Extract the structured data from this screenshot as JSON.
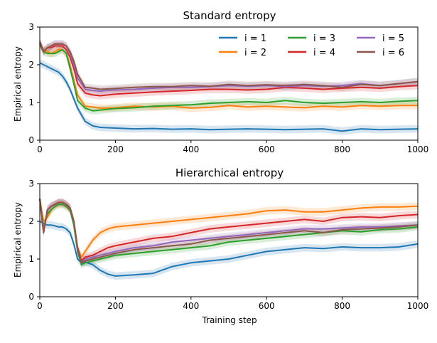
{
  "chart_data": [
    {
      "type": "line",
      "title": "Standard entropy",
      "xlabel": "",
      "ylabel": "Empirical entropy",
      "xlim": [
        0,
        1000
      ],
      "ylim": [
        0,
        3
      ],
      "xticks": [
        0,
        200,
        400,
        600,
        800,
        1000
      ],
      "yticks": [
        0,
        1,
        2,
        3
      ],
      "x": [
        0,
        10,
        20,
        30,
        40,
        50,
        60,
        70,
        80,
        90,
        100,
        120,
        140,
        160,
        180,
        200,
        250,
        300,
        350,
        400,
        450,
        500,
        550,
        600,
        650,
        700,
        750,
        800,
        850,
        900,
        950,
        1000
      ],
      "legend_position": "top-right",
      "series": [
        {
          "name": "i = 1",
          "color": "#1f77b4",
          "values": [
            2.05,
            2.0,
            1.95,
            1.9,
            1.85,
            1.8,
            1.7,
            1.55,
            1.35,
            1.1,
            0.85,
            0.5,
            0.38,
            0.34,
            0.33,
            0.32,
            0.3,
            0.31,
            0.29,
            0.3,
            0.28,
            0.29,
            0.3,
            0.29,
            0.28,
            0.29,
            0.3,
            0.24,
            0.3,
            0.28,
            0.29,
            0.3
          ]
        },
        {
          "name": "i = 2",
          "color": "#ff7f0e",
          "values": [
            2.55,
            2.4,
            2.35,
            2.3,
            2.35,
            2.4,
            2.4,
            2.3,
            2.0,
            1.6,
            1.2,
            0.9,
            0.88,
            0.85,
            0.85,
            0.86,
            0.9,
            0.88,
            0.9,
            0.85,
            0.87,
            0.92,
            0.88,
            0.9,
            0.88,
            0.86,
            0.9,
            0.88,
            0.92,
            0.9,
            0.92,
            0.92
          ]
        },
        {
          "name": "i = 3",
          "color": "#2ca02c",
          "values": [
            2.55,
            2.35,
            2.3,
            2.3,
            2.3,
            2.35,
            2.4,
            2.3,
            1.9,
            1.5,
            1.05,
            0.85,
            0.78,
            0.8,
            0.82,
            0.84,
            0.86,
            0.9,
            0.92,
            0.94,
            0.98,
            1.0,
            1.02,
            1.0,
            1.05,
            1.0,
            0.98,
            1.0,
            1.02,
            1.0,
            1.03,
            1.05
          ]
        },
        {
          "name": "i = 4",
          "color": "#d62728",
          "values": [
            2.6,
            2.35,
            2.45,
            2.45,
            2.5,
            2.5,
            2.5,
            2.4,
            2.2,
            1.9,
            1.5,
            1.25,
            1.2,
            1.18,
            1.2,
            1.22,
            1.25,
            1.28,
            1.3,
            1.32,
            1.35,
            1.35,
            1.33,
            1.35,
            1.4,
            1.38,
            1.35,
            1.38,
            1.4,
            1.38,
            1.42,
            1.45
          ]
        },
        {
          "name": "i = 5",
          "color": "#9467bd",
          "values": [
            2.6,
            2.35,
            2.45,
            2.5,
            2.55,
            2.55,
            2.55,
            2.5,
            2.3,
            2.0,
            1.65,
            1.35,
            1.32,
            1.3,
            1.32,
            1.33,
            1.35,
            1.38,
            1.4,
            1.4,
            1.42,
            1.45,
            1.43,
            1.45,
            1.42,
            1.45,
            1.43,
            1.45,
            1.5,
            1.45,
            1.5,
            1.55
          ]
        },
        {
          "name": "i = 6",
          "color": "#8c564b",
          "values": [
            2.6,
            2.35,
            2.45,
            2.5,
            2.55,
            2.55,
            2.55,
            2.5,
            2.35,
            2.1,
            1.75,
            1.4,
            1.38,
            1.35,
            1.36,
            1.37,
            1.4,
            1.42,
            1.42,
            1.45,
            1.43,
            1.48,
            1.45,
            1.47,
            1.45,
            1.48,
            1.45,
            1.4,
            1.48,
            1.45,
            1.5,
            1.55
          ]
        }
      ]
    },
    {
      "type": "line",
      "title": "Hierarchical entropy",
      "xlabel": "Training step",
      "ylabel": "Empirical entropy",
      "xlim": [
        0,
        1000
      ],
      "ylim": [
        0,
        3
      ],
      "xticks": [
        0,
        200,
        400,
        600,
        800,
        1000
      ],
      "yticks": [
        0,
        1,
        2,
        3
      ],
      "x": [
        0,
        10,
        20,
        30,
        40,
        50,
        60,
        70,
        80,
        90,
        100,
        110,
        120,
        140,
        160,
        180,
        200,
        250,
        300,
        350,
        400,
        450,
        500,
        550,
        600,
        650,
        700,
        750,
        800,
        850,
        900,
        950,
        1000
      ],
      "series": [
        {
          "name": "i = 1",
          "color": "#1f77b4",
          "values": [
            2.0,
            1.95,
            1.9,
            1.9,
            1.88,
            1.85,
            1.85,
            1.8,
            1.7,
            1.4,
            1.0,
            0.9,
            0.92,
            0.85,
            0.7,
            0.6,
            0.55,
            0.58,
            0.62,
            0.8,
            0.9,
            0.95,
            1.0,
            1.1,
            1.2,
            1.25,
            1.3,
            1.28,
            1.32,
            1.3,
            1.3,
            1.32,
            1.4
          ]
        },
        {
          "name": "i = 2",
          "color": "#ff7f0e",
          "values": [
            2.6,
            2.0,
            2.1,
            2.3,
            2.4,
            2.45,
            2.45,
            2.4,
            2.3,
            2.0,
            1.3,
            1.05,
            1.2,
            1.5,
            1.7,
            1.8,
            1.85,
            1.9,
            1.95,
            2.0,
            2.05,
            2.1,
            2.15,
            2.2,
            2.28,
            2.3,
            2.25,
            2.25,
            2.3,
            2.35,
            2.38,
            2.38,
            2.4
          ]
        },
        {
          "name": "i = 3",
          "color": "#2ca02c",
          "values": [
            2.6,
            1.8,
            2.2,
            2.3,
            2.4,
            2.45,
            2.45,
            2.4,
            2.3,
            1.9,
            1.2,
            0.85,
            0.9,
            0.95,
            1.0,
            1.05,
            1.1,
            1.15,
            1.2,
            1.25,
            1.3,
            1.35,
            1.45,
            1.5,
            1.55,
            1.6,
            1.65,
            1.7,
            1.75,
            1.72,
            1.78,
            1.8,
            1.85
          ]
        },
        {
          "name": "i = 4",
          "color": "#d62728",
          "values": [
            2.6,
            1.7,
            2.3,
            2.4,
            2.45,
            2.5,
            2.5,
            2.45,
            2.35,
            2.0,
            1.3,
            0.95,
            1.05,
            1.1,
            1.2,
            1.3,
            1.35,
            1.45,
            1.55,
            1.6,
            1.7,
            1.8,
            1.85,
            1.9,
            1.95,
            2.0,
            2.05,
            2.0,
            2.1,
            2.12,
            2.1,
            2.15,
            2.18
          ]
        },
        {
          "name": "i = 5",
          "color": "#9467bd",
          "values": [
            2.6,
            1.7,
            2.3,
            2.4,
            2.45,
            2.5,
            2.5,
            2.45,
            2.35,
            2.0,
            1.25,
            0.9,
            1.0,
            1.05,
            1.1,
            1.15,
            1.2,
            1.3,
            1.35,
            1.45,
            1.5,
            1.55,
            1.6,
            1.65,
            1.7,
            1.75,
            1.8,
            1.8,
            1.82,
            1.85,
            1.85,
            1.88,
            1.9
          ]
        },
        {
          "name": "i = 6",
          "color": "#8c564b",
          "values": [
            2.6,
            1.7,
            2.3,
            2.4,
            2.45,
            2.5,
            2.5,
            2.45,
            2.35,
            2.0,
            1.25,
            0.9,
            0.95,
            1.0,
            1.05,
            1.1,
            1.15,
            1.25,
            1.3,
            1.35,
            1.4,
            1.5,
            1.55,
            1.6,
            1.65,
            1.7,
            1.75,
            1.7,
            1.78,
            1.8,
            1.82,
            1.85,
            1.9
          ]
        }
      ]
    }
  ]
}
